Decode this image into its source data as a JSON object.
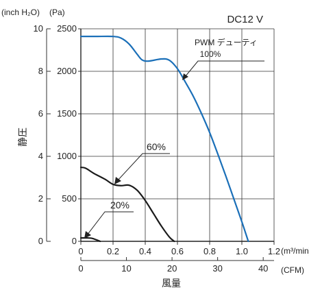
{
  "chart_data": {
    "type": "line",
    "condition": "DC12 V",
    "xlabel": "風量",
    "ylabel": "静圧",
    "x_unit_primary": "(m³/min)",
    "x_unit_secondary": "(CFM)",
    "y_unit_primary": "(Pa)",
    "y_unit_secondary": "(inch H₂O)",
    "xlim": [
      0,
      1.2
    ],
    "ylim": [
      0,
      2500
    ],
    "x_ticks": [
      "0",
      "0.2",
      "0.4",
      "0.6",
      "0.8",
      "1.0",
      "1.2"
    ],
    "x_ticks_cfm": [
      "0",
      "10",
      "20",
      "30",
      "40"
    ],
    "y_ticks_pa": [
      "0",
      "500",
      "1000",
      "1500",
      "2000",
      "2500"
    ],
    "y_ticks_inch": [
      "0",
      "2",
      "4",
      "6",
      "8",
      "10"
    ],
    "grid": true,
    "annotation_pwm_line1": "PWM デューティ",
    "annotation_pwm_line2": "100%",
    "annotation_60": "60%",
    "annotation_20": "20%",
    "series": [
      {
        "label_ref": "100%",
        "color": "#1a6fb8",
        "x": [
          0,
          0.05,
          0.1,
          0.2,
          0.25,
          0.3,
          0.35,
          0.38,
          0.42,
          0.5,
          0.55,
          0.6,
          0.65,
          0.7,
          0.75,
          0.8,
          0.85,
          0.9,
          0.95,
          1.0,
          1.04
        ],
        "y": [
          2410,
          2410,
          2410,
          2410,
          2390,
          2320,
          2200,
          2135,
          2120,
          2145,
          2130,
          2030,
          1870,
          1700,
          1500,
          1280,
          1030,
          770,
          500,
          230,
          0
        ]
      },
      {
        "label_ref": "60%",
        "color": "#1a1a1a",
        "x": [
          0,
          0.03,
          0.08,
          0.15,
          0.2,
          0.25,
          0.3,
          0.35,
          0.4,
          0.45,
          0.5,
          0.55,
          0.58
        ],
        "y": [
          870,
          860,
          800,
          730,
          670,
          655,
          660,
          600,
          480,
          330,
          180,
          50,
          0
        ]
      },
      {
        "label_ref": "20%",
        "color": "#1a1a1a",
        "x": [
          0,
          0.04,
          0.07,
          0.1,
          0.12
        ],
        "y": [
          40,
          40,
          35,
          15,
          0
        ]
      }
    ]
  }
}
